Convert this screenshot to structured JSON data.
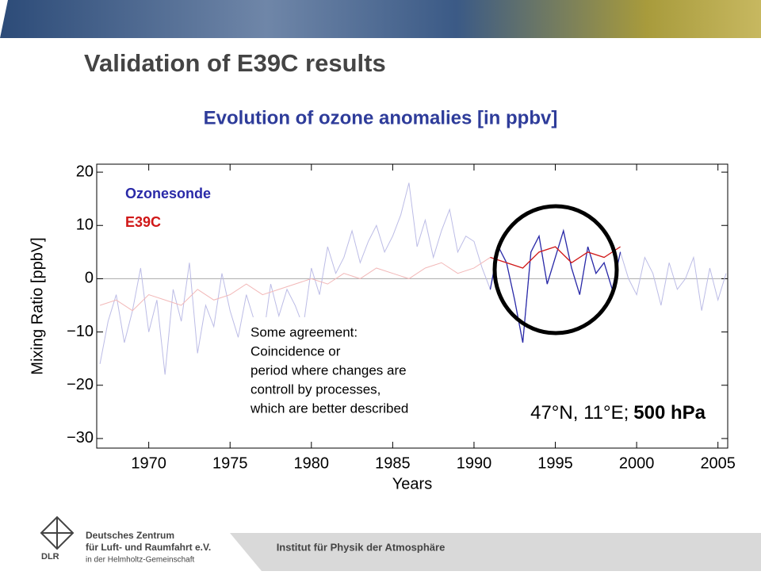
{
  "slide": {
    "title": "Validation of E39C results",
    "subtitle": "Evolution of ozone anomalies [in ppbv]",
    "footer": "Institut für Physik der Atmosphäre",
    "logo": {
      "short": "DLR",
      "line1": "Deutsches Zentrum",
      "line2": "für Luft- und Raumfahrt e.V.",
      "line3": "in der Helmholtz-Gemeinschaft"
    }
  },
  "chart_data": {
    "type": "line",
    "xlabel": "Years",
    "ylabel": "Mixing Ratio [ppbV]",
    "xlim": [
      1966.8,
      2005.6
    ],
    "ylim": [
      -31.8,
      21.5
    ],
    "xticks": [
      1970,
      1975,
      1980,
      1985,
      1990,
      1995,
      2000,
      2005
    ],
    "yticks": [
      {
        "value": -30,
        "label": "−30"
      },
      {
        "value": -20,
        "label": "−20"
      },
      {
        "value": -10,
        "label": "−10"
      },
      0,
      10,
      20
    ],
    "zero_line": true,
    "highlight_period": [
      1991,
      1999
    ],
    "series": [
      {
        "name": "Ozonesonde",
        "color": "#2a2aa8",
        "faded_color": "#bcbce6",
        "x": [
          1967,
          1967.5,
          1968,
          1968.5,
          1969,
          1969.5,
          1970,
          1970.5,
          1971,
          1971.5,
          1972,
          1972.5,
          1973,
          1973.5,
          1974,
          1974.5,
          1975,
          1975.5,
          1976,
          1976.5,
          1977,
          1977.5,
          1978,
          1978.5,
          1979,
          1979.5,
          1980,
          1980.5,
          1981,
          1981.5,
          1982,
          1982.5,
          1983,
          1983.5,
          1984,
          1984.5,
          1985,
          1985.5,
          1986,
          1986.5,
          1987,
          1987.5,
          1988,
          1988.5,
          1989,
          1989.5,
          1990,
          1990.5,
          1991,
          1991.5,
          1992,
          1992.5,
          1993,
          1993.5,
          1994,
          1994.5,
          1995,
          1995.5,
          1996,
          1996.5,
          1997,
          1997.5,
          1998,
          1998.5,
          1999,
          1999.5,
          2000,
          2000.5,
          2001,
          2001.5,
          2002,
          2002.5,
          2003,
          2003.5,
          2004,
          2004.5,
          2005,
          2005.5
        ],
        "values": [
          -16,
          -8,
          -3,
          -12,
          -6,
          2,
          -10,
          -4,
          -18,
          -2,
          -8,
          3,
          -14,
          -5,
          -9,
          1,
          -6,
          -11,
          -3,
          -8,
          -12,
          -1,
          -7,
          -2,
          -5,
          -9,
          2,
          -3,
          6,
          1,
          4,
          9,
          3,
          7,
          10,
          5,
          8,
          12,
          18,
          6,
          11,
          4,
          9,
          13,
          5,
          8,
          7,
          2,
          -2,
          6,
          3,
          -4,
          -12,
          5,
          8,
          -1,
          4,
          9,
          2,
          -3,
          6,
          1,
          3,
          -2,
          5,
          0,
          -3,
          4,
          1,
          -5,
          3,
          -2,
          0,
          4,
          -6,
          2,
          -4,
          1
        ]
      },
      {
        "name": "E39C",
        "color": "#d01818",
        "faded_color": "#f2b8b8",
        "x": [
          1967,
          1968,
          1969,
          1970,
          1971,
          1972,
          1973,
          1974,
          1975,
          1976,
          1977,
          1978,
          1979,
          1980,
          1981,
          1982,
          1983,
          1984,
          1985,
          1986,
          1987,
          1988,
          1989,
          1990,
          1991,
          1992,
          1993,
          1994,
          1995,
          1996,
          1997,
          1998,
          1999
        ],
        "values": [
          -5,
          -4,
          -6,
          -3,
          -4,
          -5,
          -2,
          -4,
          -3,
          -1,
          -3,
          -2,
          -1,
          0,
          -1,
          1,
          0,
          2,
          1,
          0,
          2,
          3,
          1,
          2,
          4,
          3,
          2,
          5,
          6,
          3,
          5,
          4,
          6
        ]
      }
    ],
    "annotations": [
      "Some agreement:",
      "Coincidence or",
      "period where changes are",
      "controll by processes,",
      "which are better described"
    ],
    "location": "47°N, 11°E;",
    "level": "500 hPa"
  }
}
